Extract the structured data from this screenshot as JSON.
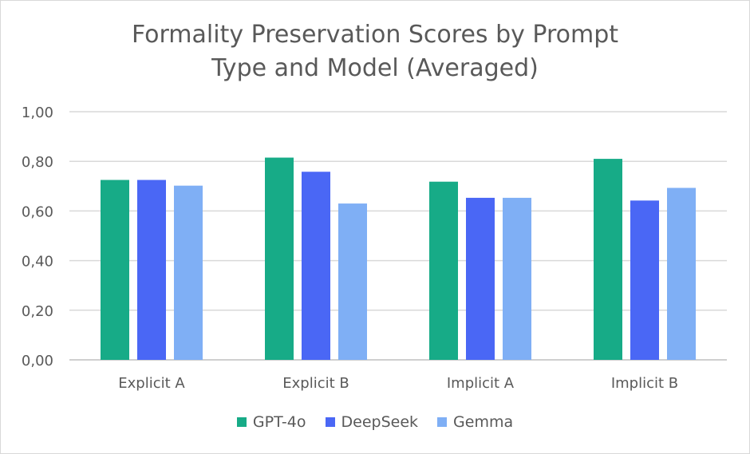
{
  "chart_data": {
    "type": "bar",
    "title_lines": [
      "Formality Preservation Scores by Prompt",
      "Type and Model (Averaged)"
    ],
    "categories": [
      "Explicit A",
      "Explicit B",
      "Implicit A",
      "Implicit B"
    ],
    "series": [
      {
        "name": "GPT-4o",
        "color": "#17ab87",
        "values": [
          0.725,
          0.815,
          0.718,
          0.81
        ]
      },
      {
        "name": "DeepSeek",
        "color": "#4a67f5",
        "values": [
          0.725,
          0.758,
          0.653,
          0.642
        ]
      },
      {
        "name": "Gemma",
        "color": "#7faff5",
        "values": [
          0.702,
          0.63,
          0.653,
          0.693
        ]
      }
    ],
    "ylim": [
      0,
      1
    ],
    "yticks": [
      0,
      0.2,
      0.4,
      0.6,
      0.8,
      1.0
    ],
    "ytick_labels": [
      "0,00",
      "0,20",
      "0,40",
      "0,60",
      "0,80",
      "1,00"
    ],
    "grid": true,
    "legend_position": "bottom"
  }
}
